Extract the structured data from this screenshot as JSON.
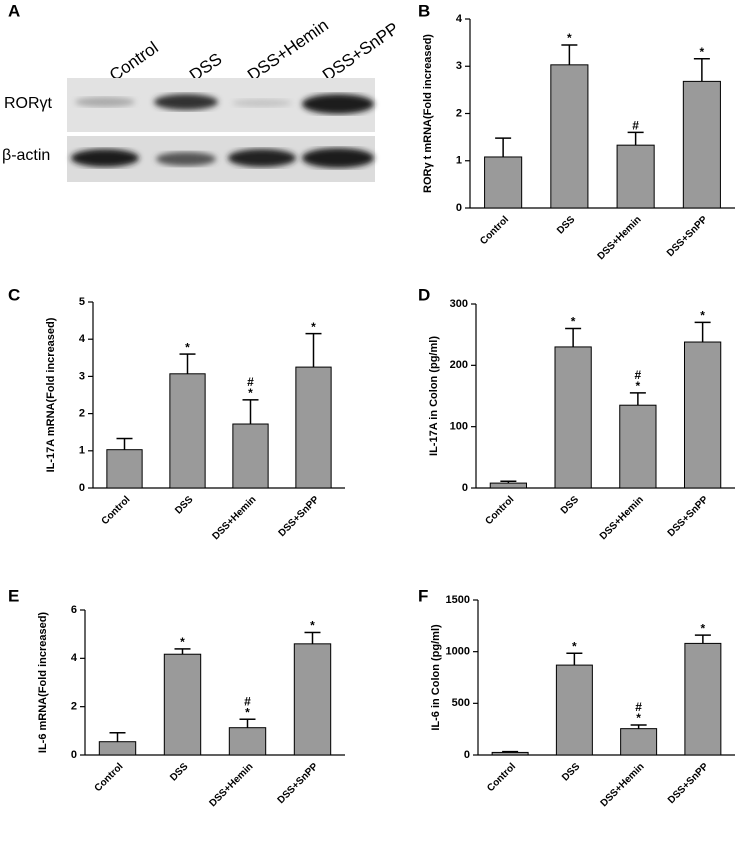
{
  "blot": {
    "panel": "A",
    "lanes": [
      "Control",
      "DSS",
      "DSS+Hemin",
      "DSS+SnPP"
    ],
    "rows": [
      "RORγt",
      "β-actin"
    ]
  },
  "chart_data": [
    {
      "type": "bar",
      "panel": "B",
      "ylabel": "RORγ t mRNA(Fold increased)",
      "categories": [
        "Control",
        "DSS",
        "DSS+Hemin",
        "DSS+SnPP"
      ],
      "values": [
        1.08,
        3.03,
        1.33,
        2.68
      ],
      "errors": [
        0.4,
        0.42,
        0.27,
        0.48
      ],
      "annotations": [
        [],
        [
          "*"
        ],
        [
          "#"
        ],
        [
          "*"
        ]
      ],
      "color": "#9a9a9a",
      "ylim": [
        0,
        4
      ],
      "yticks": [
        0,
        1,
        2,
        3,
        4
      ]
    },
    {
      "type": "bar",
      "panel": "C",
      "ylabel": "IL-17A mRNA(Fold increased)",
      "categories": [
        "Control",
        "DSS",
        "DSS+Hemin",
        "DSS+SnPP"
      ],
      "values": [
        1.03,
        3.07,
        1.72,
        3.25
      ],
      "errors": [
        0.3,
        0.53,
        0.65,
        0.9
      ],
      "annotations": [
        [],
        [
          "*"
        ],
        [
          "*",
          "#"
        ],
        [
          "*"
        ]
      ],
      "color": "#9a9a9a",
      "ylim": [
        0,
        5
      ],
      "yticks": [
        0,
        1,
        2,
        3,
        4,
        5
      ]
    },
    {
      "type": "bar",
      "panel": "D",
      "ylabel": "IL-17A in Colon (pg/ml)",
      "categories": [
        "Control",
        "DSS",
        "DSS+Hemin",
        "DSS+SnPP"
      ],
      "values": [
        8,
        230,
        135,
        238
      ],
      "errors": [
        3,
        30,
        20,
        32
      ],
      "annotations": [
        [],
        [
          "*"
        ],
        [
          "*",
          "#"
        ],
        [
          "*"
        ]
      ],
      "color": "#9a9a9a",
      "ylim": [
        0,
        300
      ],
      "yticks": [
        0,
        100,
        200,
        300
      ]
    },
    {
      "type": "bar",
      "panel": "E",
      "ylabel": "IL-6 mRNA(Fold increased)",
      "categories": [
        "Control",
        "DSS",
        "DSS+Hemin",
        "DSS+SnPP"
      ],
      "values": [
        0.55,
        4.17,
        1.13,
        4.6
      ],
      "errors": [
        0.37,
        0.22,
        0.35,
        0.47
      ],
      "annotations": [
        [],
        [
          "*"
        ],
        [
          "*",
          "#"
        ],
        [
          "*"
        ]
      ],
      "color": "#9a9a9a",
      "ylim": [
        0,
        6
      ],
      "yticks": [
        0,
        2,
        4,
        6
      ]
    },
    {
      "type": "bar",
      "panel": "F",
      "ylabel": "IL-6 in Colon (pg/ml)",
      "categories": [
        "Control",
        "DSS",
        "DSS+Hemin",
        "DSS+SnPP"
      ],
      "values": [
        25,
        870,
        255,
        1080
      ],
      "errors": [
        8,
        115,
        35,
        80
      ],
      "annotations": [
        [],
        [
          "*"
        ],
        [
          "*",
          "#"
        ],
        [
          "*"
        ]
      ],
      "color": "#9a9a9a",
      "ylim": [
        0,
        1500
      ],
      "yticks": [
        0,
        500,
        1000,
        1500
      ]
    }
  ]
}
